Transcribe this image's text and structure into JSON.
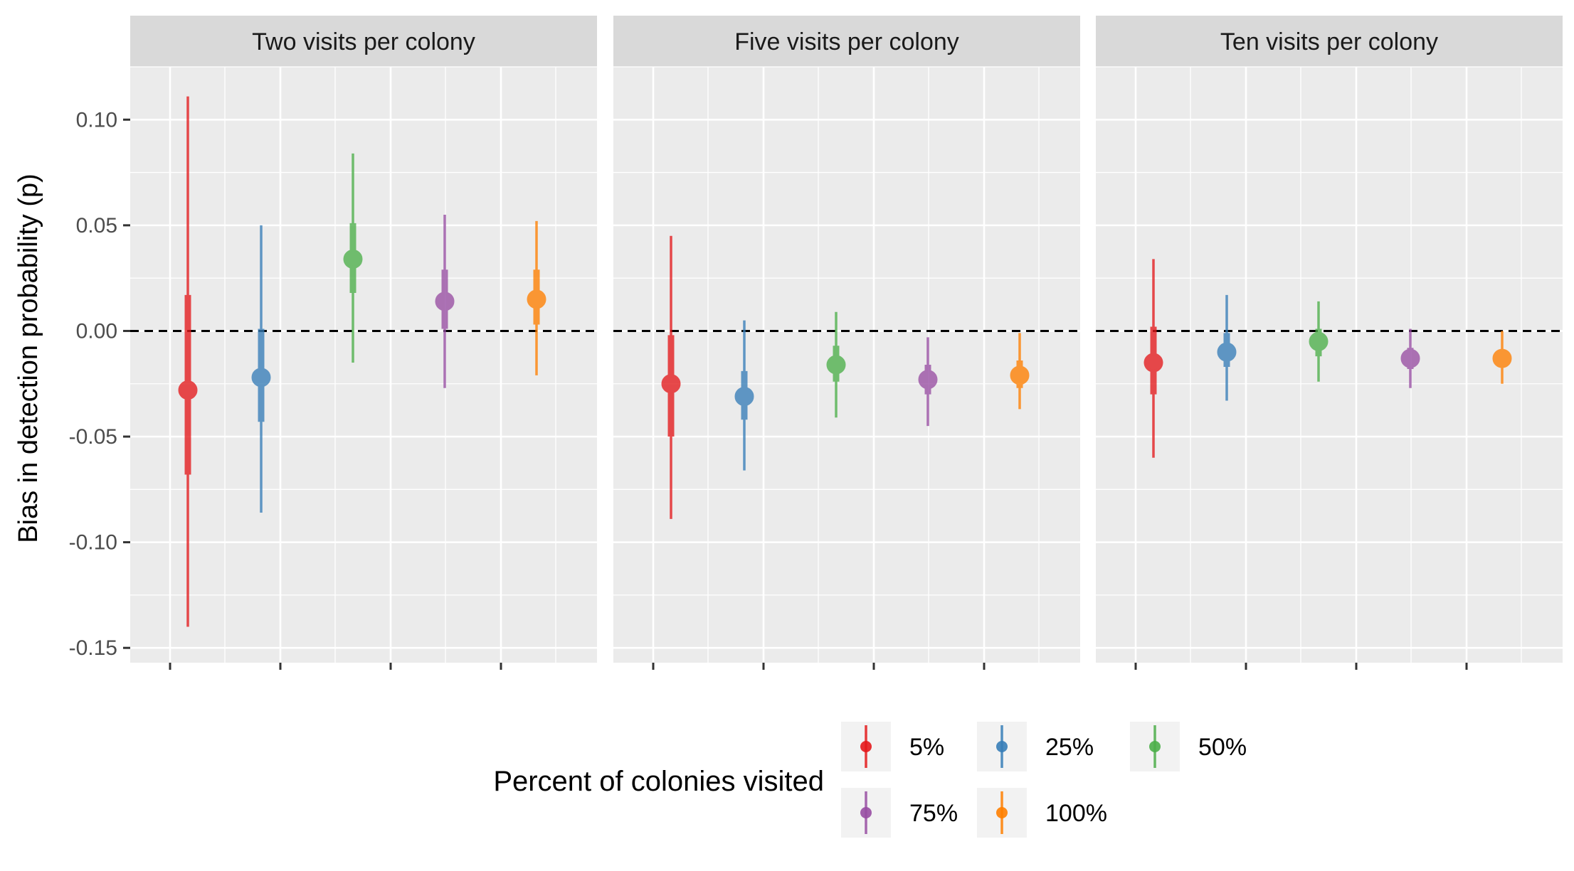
{
  "chart_data": {
    "type": "pointrange",
    "ylabel": "Bias in detection probability (p)",
    "xlabel": "",
    "ylim": [
      -0.157,
      0.125
    ],
    "y_ticks": [
      -0.15,
      -0.1,
      -0.05,
      0.0,
      0.05,
      0.1
    ],
    "y_tick_labels": [
      "-0.15",
      "-0.10",
      "-0.05",
      "0.00",
      "0.05",
      "0.10"
    ],
    "reference_line": {
      "y": 0,
      "style": "dashed",
      "color": "#000000"
    },
    "grid": true,
    "legend": {
      "title": "Percent of colonies visited",
      "position": "bottom",
      "entries": [
        "5%",
        "25%",
        "50%",
        "75%",
        "100%"
      ]
    },
    "colors": {
      "5%": "#E41A1C",
      "25%": "#377EB8",
      "50%": "#4DAF4A",
      "75%": "#984EA3",
      "100%": "#FF7F00"
    },
    "series_order": [
      "5%",
      "25%",
      "50%",
      "75%",
      "100%"
    ],
    "panels": [
      {
        "title": "Two visits per colony",
        "points": [
          {
            "series": "5%",
            "median": -0.028,
            "inner": [
              -0.068,
              0.017
            ],
            "outer": [
              -0.14,
              0.111
            ]
          },
          {
            "series": "25%",
            "median": -0.022,
            "inner": [
              -0.043,
              0.001
            ],
            "outer": [
              -0.086,
              0.05
            ]
          },
          {
            "series": "50%",
            "median": 0.034,
            "inner": [
              0.018,
              0.051
            ],
            "outer": [
              -0.015,
              0.084
            ]
          },
          {
            "series": "75%",
            "median": 0.014,
            "inner": [
              0.001,
              0.029
            ],
            "outer": [
              -0.027,
              0.055
            ]
          },
          {
            "series": "100%",
            "median": 0.015,
            "inner": [
              0.003,
              0.029
            ],
            "outer": [
              -0.021,
              0.052
            ]
          }
        ]
      },
      {
        "title": "Five visits per colony",
        "points": [
          {
            "series": "5%",
            "median": -0.025,
            "inner": [
              -0.05,
              -0.002
            ],
            "outer": [
              -0.089,
              0.045
            ]
          },
          {
            "series": "25%",
            "median": -0.031,
            "inner": [
              -0.042,
              -0.019
            ],
            "outer": [
              -0.066,
              0.005
            ]
          },
          {
            "series": "50%",
            "median": -0.016,
            "inner": [
              -0.024,
              -0.007
            ],
            "outer": [
              -0.041,
              0.009
            ]
          },
          {
            "series": "75%",
            "median": -0.023,
            "inner": [
              -0.03,
              -0.016
            ],
            "outer": [
              -0.045,
              -0.003
            ]
          },
          {
            "series": "100%",
            "median": -0.021,
            "inner": [
              -0.027,
              -0.014
            ],
            "outer": [
              -0.037,
              -0.001
            ]
          }
        ]
      },
      {
        "title": "Ten visits per colony",
        "points": [
          {
            "series": "5%",
            "median": -0.015,
            "inner": [
              -0.03,
              0.002
            ],
            "outer": [
              -0.06,
              0.034
            ]
          },
          {
            "series": "25%",
            "median": -0.01,
            "inner": [
              -0.017,
              -0.001
            ],
            "outer": [
              -0.033,
              0.017
            ]
          },
          {
            "series": "50%",
            "median": -0.005,
            "inner": [
              -0.012,
              0.001
            ],
            "outer": [
              -0.024,
              0.014
            ]
          },
          {
            "series": "75%",
            "median": -0.013,
            "inner": [
              -0.018,
              -0.008
            ],
            "outer": [
              -0.027,
              0.001
            ]
          },
          {
            "series": "100%",
            "median": -0.013,
            "inner": [
              -0.017,
              -0.009
            ],
            "outer": [
              -0.025,
              0.0
            ]
          }
        ]
      }
    ]
  }
}
